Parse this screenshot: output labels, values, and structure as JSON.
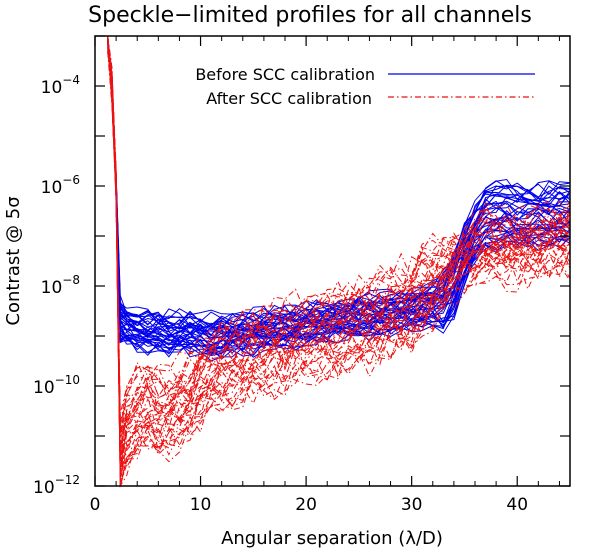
{
  "chart_data": {
    "type": "line",
    "title": "Speckle−limited profiles for all channels",
    "xlabel": "Angular separation (λ/D)",
    "ylabel": "Contrast @ 5σ",
    "xlim": [
      0,
      45
    ],
    "ylim": [
      1e-12,
      0.001
    ],
    "yscale": "log",
    "x_ticks": [
      0,
      10,
      20,
      30,
      40
    ],
    "x_tick_labels": [
      "0",
      "10",
      "20",
      "30",
      "40"
    ],
    "y_ticks": [
      1e-12,
      1e-10,
      1e-08,
      1e-06,
      0.0001
    ],
    "y_tick_labels": [
      {
        "base": "10",
        "exp": "−12"
      },
      {
        "base": "10",
        "exp": "−10"
      },
      {
        "base": "10",
        "exp": "−8"
      },
      {
        "base": "10",
        "exp": "−6"
      },
      {
        "base": "10",
        "exp": "−4"
      }
    ],
    "legend_position": "top-right",
    "series": [
      {
        "name": "Before SCC calibration",
        "color": "#0000ee",
        "dash": "solid",
        "channels": 39,
        "x": [
          1.2,
          1.6,
          2.0,
          2.4,
          3,
          4,
          5,
          6,
          7,
          8,
          9,
          10,
          11,
          12,
          13,
          14,
          15,
          16,
          17,
          18,
          19,
          20,
          21,
          22,
          23,
          24,
          25,
          26,
          27,
          28,
          29,
          30,
          31,
          32,
          33,
          34,
          35,
          36,
          37,
          38,
          39,
          40,
          41,
          42,
          43,
          44,
          45
        ],
        "y_median": [
          0.001,
          0.0001,
          1e-06,
          2e-09,
          1.6e-09,
          1.3e-09,
          1.2e-09,
          1.2e-09,
          1.1e-09,
          1.1e-09,
          1.1e-09,
          1.1e-09,
          1e-09,
          1e-09,
          1.1e-09,
          1.1e-09,
          1.2e-09,
          1.3e-09,
          1.4e-09,
          1.5e-09,
          1.6e-09,
          1.7e-09,
          1.8e-09,
          1.9e-09,
          2e-09,
          2.1e-09,
          2.3e-09,
          2.5e-09,
          2.7e-09,
          3e-09,
          3.2e-09,
          3.5e-09,
          3.8e-09,
          4.2e-09,
          5e-09,
          1e-08,
          4e-08,
          1.2e-07,
          2.2e-07,
          2.6e-07,
          2.6e-07,
          2.5e-07,
          2.4e-07,
          2.4e-07,
          2.5e-07,
          2.6e-07,
          2.8e-07
        ]
      },
      {
        "name": "After SCC calibration",
        "color": "#ee1111",
        "dash": "dash-dot",
        "channels": 39,
        "x": [
          1.2,
          1.6,
          2.0,
          2.4,
          3,
          4,
          5,
          6,
          7,
          8,
          9,
          10,
          11,
          12,
          13,
          14,
          15,
          16,
          17,
          18,
          19,
          20,
          21,
          22,
          23,
          24,
          25,
          26,
          27,
          28,
          29,
          30,
          31,
          32,
          33,
          34,
          35,
          36,
          37,
          38,
          39,
          40,
          41,
          42,
          43,
          44,
          45
        ],
        "y_median": [
          0.001,
          0.0001,
          1e-06,
          3e-12,
          1.2e-11,
          3e-11,
          4e-11,
          2.6e-11,
          3e-11,
          4.5e-11,
          6e-11,
          1.1e-10,
          2e-10,
          2.6e-10,
          3e-10,
          3.5e-10,
          4.2e-10,
          5e-10,
          5.8e-10,
          6.5e-10,
          7.5e-10,
          8.5e-10,
          1e-09,
          1.1e-09,
          1.25e-09,
          1.4e-09,
          1.6e-09,
          1.9e-09,
          2.3e-09,
          2.8e-09,
          3.6e-09,
          5e-09,
          7e-09,
          1e-08,
          1.5e-08,
          2.5e-08,
          4e-08,
          5.5e-08,
          6e-08,
          6e-08,
          5.8e-08,
          5.8e-08,
          6.2e-08,
          6.8e-08,
          7.5e-08,
          8.5e-08,
          1e-07
        ]
      }
    ]
  }
}
